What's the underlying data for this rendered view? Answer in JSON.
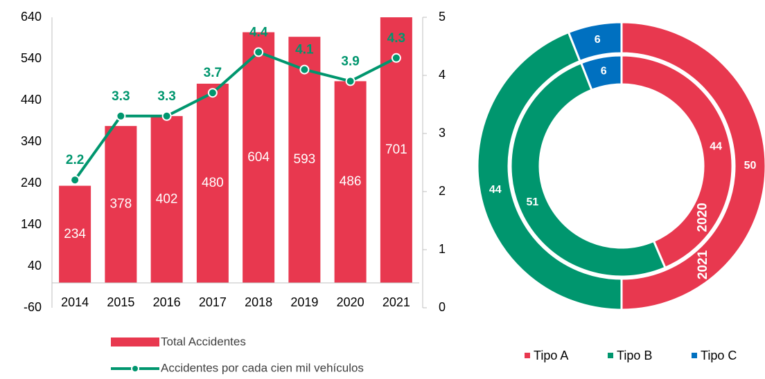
{
  "chart_data": [
    {
      "type": "bar",
      "categories": [
        "2014",
        "2015",
        "2016",
        "2017",
        "2018",
        "2019",
        "2020",
        "2021"
      ],
      "series": [
        {
          "name": "Total Accidentes",
          "color": "#e8384f",
          "values": [
            234,
            378,
            402,
            480,
            604,
            593,
            486,
            701
          ]
        },
        {
          "name": "Accidentes por cada cien mil vehículos",
          "color": "#00966e",
          "axis": "y2",
          "type": "line",
          "values": [
            2.2,
            3.3,
            3.3,
            3.7,
            4.4,
            4.1,
            3.9,
            4.3
          ]
        }
      ],
      "ylim": [
        -60,
        640
      ],
      "yticks": [
        -60,
        40,
        140,
        240,
        340,
        440,
        540,
        640
      ],
      "y2lim": [
        0,
        5
      ],
      "y2ticks": [
        0,
        1,
        2,
        3,
        4,
        5
      ],
      "legend": "bottom"
    },
    {
      "type": "doughnut",
      "categories": [
        "Tipo A",
        "Tipo B",
        "Tipo C"
      ],
      "colors": [
        "#e8384f",
        "#00966e",
        "#0070c0"
      ],
      "series": [
        {
          "name": "2021",
          "values": [
            50,
            44,
            6
          ]
        },
        {
          "name": "2020",
          "values": [
            44,
            51,
            6
          ]
        }
      ],
      "legend": "bottom"
    }
  ]
}
